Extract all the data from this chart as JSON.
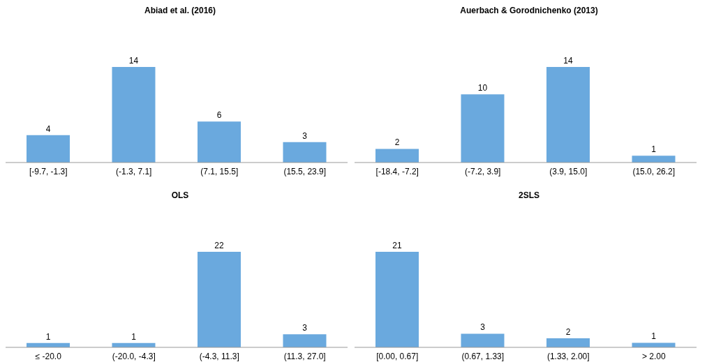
{
  "chart_data": [
    {
      "type": "bar",
      "title": "Abiad et al. (2016)",
      "categories": [
        "[-9.7, -1.3]",
        "(-1.3, 7.1]",
        "(7.1, 15.5]",
        "(15.5, 23.9]"
      ],
      "values": [
        4,
        14,
        6,
        3
      ],
      "color": "#6aa9de",
      "data_labels": true,
      "tick_labels": "x",
      "grid": false,
      "legend": false
    },
    {
      "type": "bar",
      "title": "Auerbach & Gorodnichenko (2013)",
      "categories": [
        "[-18.4, -7.2]",
        "(-7.2, 3.9]",
        "(3.9, 15.0]",
        "(15.0, 26.2]"
      ],
      "values": [
        2,
        10,
        14,
        1
      ],
      "color": "#6aa9de",
      "data_labels": true,
      "tick_labels": "x",
      "grid": false,
      "legend": false
    },
    {
      "type": "bar",
      "title": "OLS",
      "categories": [
        "≤ -20.0",
        "(-20.0, -4.3]",
        "(-4.3, 11.3]",
        "(11.3, 27.0]"
      ],
      "values": [
        1,
        1,
        22,
        3
      ],
      "color": "#6aa9de",
      "data_labels": true,
      "tick_labels": "x",
      "grid": false,
      "legend": false
    },
    {
      "type": "bar",
      "title": "2SLS",
      "categories": [
        "[0.00, 0.67]",
        "(0.67, 1.33]",
        "(1.33, 2.00]",
        "> 2.00"
      ],
      "values": [
        21,
        3,
        2,
        1
      ],
      "color": "#6aa9de",
      "data_labels": true,
      "tick_labels": "x",
      "grid": false,
      "legend": false
    }
  ]
}
